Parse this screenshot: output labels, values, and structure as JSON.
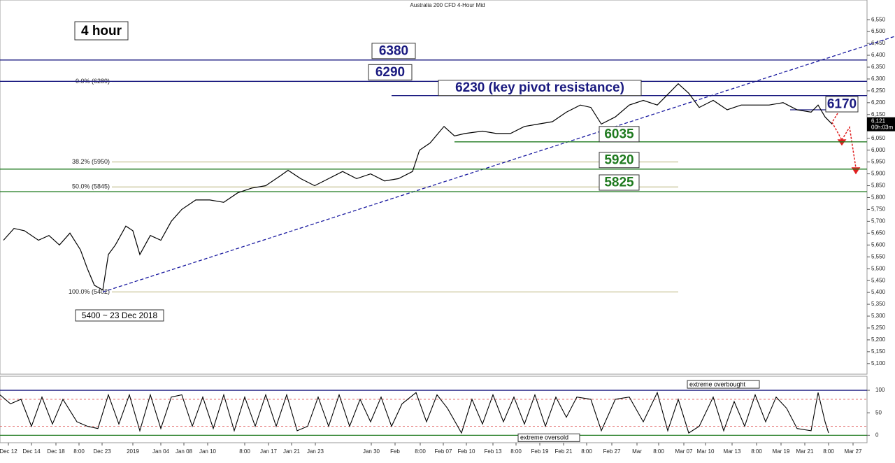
{
  "chart_data": {
    "type": "line",
    "title": "Australia 200 CFD 4-Hour Mid",
    "timeframe": "4 hour",
    "xlim": [
      0,
      248
    ],
    "xticks": [
      {
        "value": 2.4,
        "label": "Dec 12"
      },
      {
        "value": 9,
        "label": "Dec 14"
      },
      {
        "value": 16,
        "label": "Dec 18"
      },
      {
        "value": 22.6,
        "label": "8:00"
      },
      {
        "value": 29.2,
        "label": "Dec 23"
      },
      {
        "value": 38,
        "label": "2019"
      },
      {
        "value": 46,
        "label": "Jan 04"
      },
      {
        "value": 52.6,
        "label": "Jan 08"
      },
      {
        "value": 59.4,
        "label": "Jan 10"
      },
      {
        "value": 70,
        "label": "8:00"
      },
      {
        "value": 76.8,
        "label": "Jan 17"
      },
      {
        "value": 83.4,
        "label": "Jan 21"
      },
      {
        "value": 90.2,
        "label": "Jan 23"
      },
      {
        "value": 106.2,
        "label": "Jan 30"
      },
      {
        "value": 113,
        "label": "Feb"
      },
      {
        "value": 120.2,
        "label": "8:00"
      },
      {
        "value": 126.8,
        "label": "Feb 07"
      },
      {
        "value": 133.4,
        "label": "Feb 10"
      },
      {
        "value": 141,
        "label": "Feb 13"
      },
      {
        "value": 147.6,
        "label": "8:00"
      },
      {
        "value": 154.4,
        "label": "Feb 19"
      },
      {
        "value": 161.2,
        "label": "Feb 21"
      },
      {
        "value": 167.8,
        "label": "8:00"
      },
      {
        "value": 175,
        "label": "Feb 27"
      },
      {
        "value": 182.2,
        "label": "Mar"
      },
      {
        "value": 188.4,
        "label": "8:00"
      },
      {
        "value": 195.6,
        "label": "Mar 07"
      },
      {
        "value": 201.8,
        "label": "Mar 10"
      },
      {
        "value": 209.4,
        "label": "Mar 13"
      },
      {
        "value": 216.4,
        "label": "8:00"
      },
      {
        "value": 223.4,
        "label": "Mar 19"
      },
      {
        "value": 230.2,
        "label": "Mar 21"
      },
      {
        "value": 237,
        "label": "8:00"
      },
      {
        "value": 244,
        "label": "Mar 27"
      }
    ],
    "ylim": [
      5070,
      6580
    ],
    "yticks": [
      {
        "value": 5100,
        "label": "5,100"
      },
      {
        "value": 5150,
        "label": "5,150"
      },
      {
        "value": 5200,
        "label": "5,200"
      },
      {
        "value": 5250,
        "label": "5,250"
      },
      {
        "value": 5300,
        "label": "5,300"
      },
      {
        "value": 5350,
        "label": "5,350"
      },
      {
        "value": 5400,
        "label": "5,400"
      },
      {
        "value": 5450,
        "label": "5,450"
      },
      {
        "value": 5500,
        "label": "5,500"
      },
      {
        "value": 5550,
        "label": "5,550"
      },
      {
        "value": 5600,
        "label": "5,600"
      },
      {
        "value": 5650,
        "label": "5,650"
      },
      {
        "value": 5700,
        "label": "5,700"
      },
      {
        "value": 5750,
        "label": "5,750"
      },
      {
        "value": 5800,
        "label": "5,800"
      },
      {
        "value": 5850,
        "label": "5,850"
      },
      {
        "value": 5900,
        "label": "5,900"
      },
      {
        "value": 5950,
        "label": "5,950"
      },
      {
        "value": 6000,
        "label": "6,000"
      },
      {
        "value": 6050,
        "label": "6,050"
      },
      {
        "value": 6100,
        "label": "6,100"
      },
      {
        "value": 6150,
        "label": "6,150"
      },
      {
        "value": 6200,
        "label": "6,200"
      },
      {
        "value": 6250,
        "label": "6,250"
      },
      {
        "value": 6300,
        "label": "6,300"
      },
      {
        "value": 6350,
        "label": "6,350"
      },
      {
        "value": 6400,
        "label": "6,400"
      },
      {
        "value": 6450,
        "label": "6,450"
      },
      {
        "value": 6500,
        "label": "6,500"
      },
      {
        "value": 6550,
        "label": "6,550"
      }
    ],
    "price": {
      "color": "#000000",
      "x": [
        1,
        4,
        7,
        11,
        14,
        17,
        20,
        23,
        25,
        27,
        29.4,
        31,
        33,
        36,
        38,
        40,
        43,
        46,
        49,
        52,
        56,
        60,
        64,
        68,
        72,
        76,
        80,
        82.4,
        86,
        90,
        94,
        98,
        102,
        106,
        110,
        114,
        118,
        120,
        123,
        127,
        130,
        133,
        138,
        142,
        146,
        150,
        154,
        158,
        162,
        166,
        169,
        172,
        176,
        180,
        184,
        188,
        192,
        194,
        197,
        200,
        204,
        208,
        212,
        216,
        220,
        224,
        228,
        232,
        234,
        236,
        238
      ],
      "values": [
        5620,
        5670,
        5660,
        5620,
        5640,
        5600,
        5650,
        5580,
        5500,
        5430,
        5410,
        5560,
        5600,
        5680,
        5660,
        5560,
        5640,
        5620,
        5700,
        5750,
        5790,
        5790,
        5780,
        5820,
        5840,
        5850,
        5890,
        5915,
        5880,
        5850,
        5880,
        5910,
        5880,
        5900,
        5870,
        5880,
        5910,
        6000,
        6030,
        6100,
        6060,
        6070,
        6080,
        6070,
        6070,
        6100,
        6110,
        6120,
        6160,
        6190,
        6180,
        6110,
        6140,
        6190,
        6210,
        6190,
        6250,
        6280,
        6240,
        6180,
        6210,
        6170,
        6190,
        6190,
        6190,
        6200,
        6170,
        6160,
        6190,
        6140,
        6110
      ]
    },
    "last_price": {
      "value": 6121,
      "label": "6,121"
    },
    "countdown": "00h:03m",
    "levels": [
      {
        "value": 6380,
        "label": "6380",
        "color": "#1a1a80"
      },
      {
        "value": 6290,
        "label": "6290",
        "color": "#1a1a80"
      },
      {
        "value": 6230,
        "label": "6230 (key pivot resistance)",
        "color": "#1a1a80"
      },
      {
        "value": 6170,
        "label": "6170",
        "color": "#1a1a80"
      },
      {
        "value": 6035,
        "label": "6035",
        "color": "#1f7a1f"
      },
      {
        "value": 5920,
        "label": "5920",
        "color": "#1f7a1f"
      },
      {
        "value": 5825,
        "label": "5825",
        "color": "#1f7a1f"
      }
    ],
    "fibs": [
      {
        "value": 6289,
        "label": "0.0% (6289)"
      },
      {
        "value": 5950,
        "label": "38.2% (5950)"
      },
      {
        "value": 5845,
        "label": "50.0% (5845)"
      },
      {
        "value": 5402,
        "label": "100.0% (5402)"
      }
    ],
    "trendline": {
      "color": "#1a1aa0",
      "x": [
        29.4,
        256
      ],
      "values": [
        5402,
        6480
      ]
    },
    "low_annotation": "5400 ~ 23 Dec 2018",
    "oscillator": {
      "ylim": [
        -15,
        125
      ],
      "yticks": [
        0,
        50,
        100
      ],
      "bands": [
        20,
        80
      ],
      "overbought": "extreme overbought",
      "oversold": "extreme oversold",
      "color": "#000000",
      "x": [
        0,
        3,
        6,
        9,
        12,
        15,
        18,
        22,
        25,
        28,
        31,
        34,
        37,
        40,
        43,
        46,
        49,
        52,
        55,
        58,
        61,
        64,
        67,
        70,
        73,
        76,
        79,
        82,
        85,
        88,
        91,
        94,
        97,
        100,
        103,
        106,
        109,
        112,
        115,
        119,
        122,
        125,
        128,
        132,
        135,
        138,
        141,
        144,
        147,
        150,
        153,
        156,
        159,
        162,
        165,
        169,
        172,
        176,
        180,
        184,
        188,
        191,
        194,
        197,
        200,
        204,
        207,
        210,
        213,
        216,
        219,
        222,
        225,
        228,
        232,
        234,
        236,
        237
      ],
      "values": [
        90,
        70,
        80,
        20,
        85,
        25,
        80,
        30,
        20,
        15,
        90,
        25,
        90,
        10,
        90,
        15,
        85,
        90,
        20,
        85,
        15,
        90,
        10,
        85,
        20,
        90,
        20,
        90,
        10,
        20,
        85,
        20,
        90,
        20,
        80,
        30,
        85,
        20,
        70,
        95,
        30,
        90,
        60,
        5,
        80,
        25,
        90,
        30,
        85,
        25,
        90,
        20,
        85,
        40,
        85,
        80,
        10,
        80,
        85,
        30,
        95,
        10,
        80,
        5,
        20,
        85,
        10,
        75,
        20,
        90,
        30,
        85,
        60,
        15,
        10,
        95,
        30,
        5
      ]
    }
  }
}
